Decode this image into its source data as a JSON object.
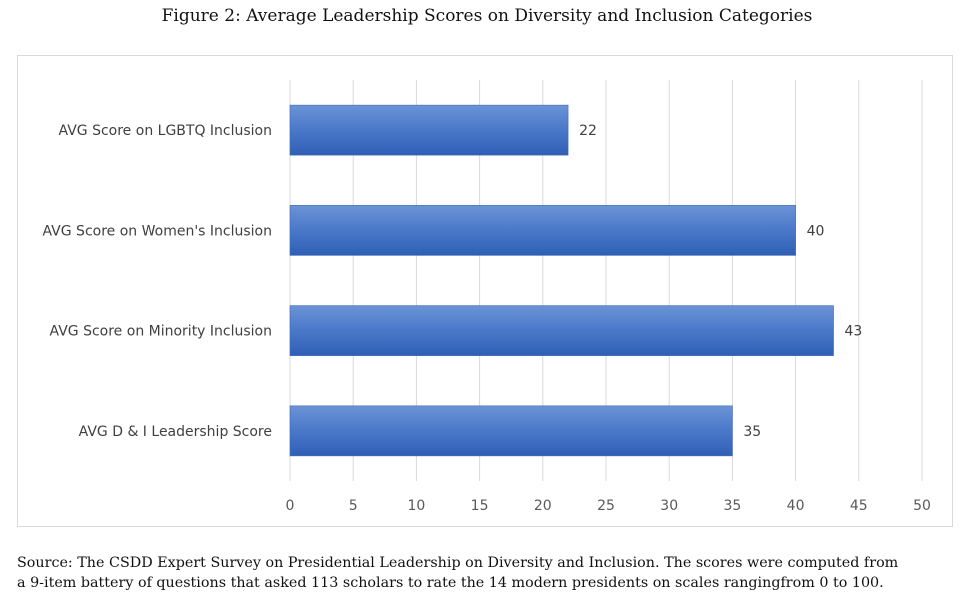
{
  "figure": {
    "title": "Figure 2: Average Leadership Scores on Diversity and Inclusion Categories",
    "source_line1": "Source: The CSDD Expert Survey on Presidential Leadership on Diversity and Inclusion. The scores were computed from",
    "source_line2": "a 9-item battery of questions that asked 113 scholars to rate the 14 modern presidents on scales rangingfrom 0 to 100."
  },
  "chart_data": {
    "type": "bar",
    "orientation": "horizontal",
    "title": "Figure 2: Average Leadership Scores on Diversity and Inclusion Categories",
    "categories": [
      "AVG Score on LGBTQ Inclusion",
      "AVG Score on Women's Inclusion",
      "AVG Score on Minority Inclusion",
      "AVG D & I Leadership Score"
    ],
    "values": [
      22,
      40,
      43,
      35
    ],
    "xlim": [
      0,
      50
    ],
    "xticks": [
      0,
      5,
      10,
      15,
      20,
      25,
      30,
      35,
      40,
      45,
      50
    ],
    "xlabel": "",
    "ylabel": "",
    "grid": "vertical",
    "data_labels": true,
    "bar_color": "#4472c4"
  }
}
